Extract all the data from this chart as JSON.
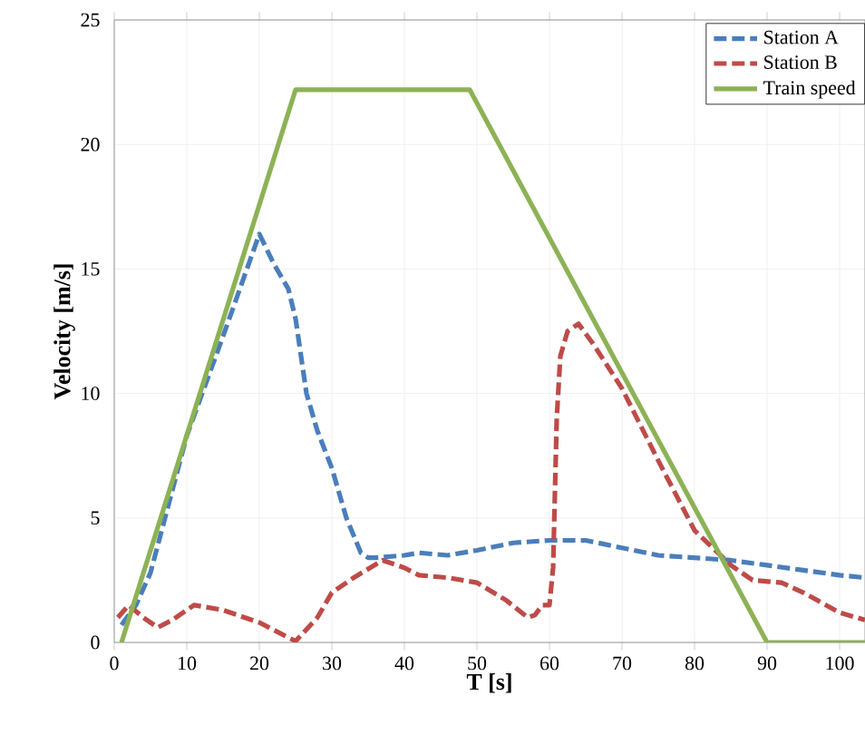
{
  "chart_data": {
    "type": "line",
    "xlabel": "T [s]",
    "ylabel": "Velocity [m/s]",
    "xlim": [
      0,
      103.5
    ],
    "ylim": [
      0,
      25
    ],
    "xticks": [
      0,
      10,
      20,
      30,
      40,
      50,
      60,
      70,
      80,
      90,
      100
    ],
    "yticks": [
      0,
      5,
      10,
      15,
      20,
      25
    ],
    "grid": true,
    "legend": "top right",
    "marker": "none",
    "series": [
      {
        "name": "Station A",
        "color": "#4a7ebb",
        "line_style": "dashed",
        "x": [
          1,
          3,
          5,
          10,
          15,
          20,
          22,
          24,
          25,
          26.5,
          28,
          30,
          32,
          34,
          35,
          36,
          40,
          42,
          46,
          50,
          55,
          60,
          65,
          70,
          75,
          80,
          85,
          90,
          95,
          100,
          103.5
        ],
        "values": [
          0.7,
          1.5,
          2.8,
          8.3,
          12.3,
          16.4,
          15.2,
          14.2,
          13,
          10,
          8.5,
          7,
          5,
          3.6,
          3.4,
          3.4,
          3.5,
          3.6,
          3.5,
          3.7,
          4.0,
          4.1,
          4.1,
          3.8,
          3.5,
          3.4,
          3.3,
          3.1,
          2.9,
          2.7,
          2.6
        ]
      },
      {
        "name": "Station B",
        "color": "#be4b48",
        "line_style": "dashed",
        "x": [
          0.5,
          2,
          4,
          6,
          8,
          11,
          15,
          20,
          25,
          28,
          30,
          33,
          37,
          40,
          42,
          46,
          50,
          54,
          57,
          58,
          59,
          60,
          60.5,
          61,
          61.5,
          62.5,
          64,
          66,
          70,
          75,
          80,
          85,
          88,
          92,
          95,
          100,
          103.5
        ],
        "values": [
          1,
          1.5,
          1,
          0.6,
          0.9,
          1.5,
          1.3,
          0.8,
          0.05,
          1,
          2,
          2.6,
          3.3,
          3,
          2.7,
          2.6,
          2.4,
          1.7,
          1.0,
          1.1,
          1.5,
          1.5,
          3,
          9,
          11.5,
          12.5,
          12.8,
          12,
          10.2,
          7.3,
          4.5,
          3.1,
          2.5,
          2.4,
          2,
          1.2,
          0.9
        ]
      },
      {
        "name": "Train speed",
        "color": "#8db255",
        "line_style": "solid",
        "x": [
          1,
          25,
          49,
          90,
          103.5
        ],
        "values": [
          0,
          22.2,
          22.2,
          0,
          0
        ]
      }
    ]
  }
}
